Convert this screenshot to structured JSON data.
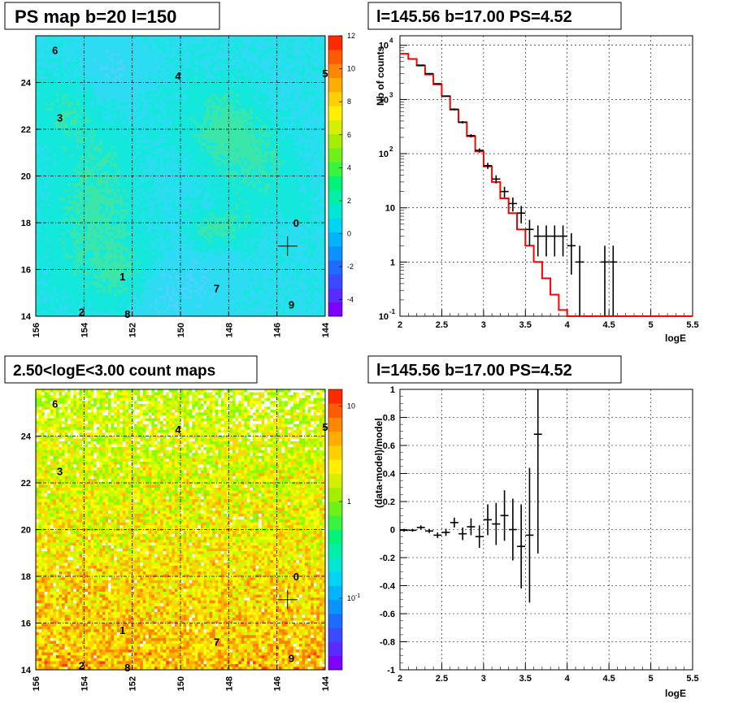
{
  "panels": {
    "top_left": {
      "title": "PS map b=20 l=150",
      "y_ticks": [
        "14",
        "16",
        "18",
        "20",
        "22",
        "24"
      ],
      "x_ticks": [
        "156",
        "154",
        "152",
        "150",
        "148",
        "146",
        "144"
      ],
      "palette_labels": [
        "12",
        "10",
        "8",
        "6",
        "4",
        "2",
        "0",
        "-2",
        "-4"
      ],
      "source_labels": [
        "6",
        "4",
        "5",
        "3",
        "0",
        "1",
        "7",
        "2",
        "8",
        "9"
      ]
    },
    "top_right": {
      "title": "l=145.56 b=17.00 PS=4.52",
      "ylabel": "Nb of counts",
      "xlabel": "logE",
      "x_ticks": [
        "2",
        "2.5",
        "3",
        "3.5",
        "4",
        "4.5",
        "5",
        "5.5"
      ]
    },
    "bottom_left": {
      "title": "2.50<logE<3.00 count maps",
      "y_ticks": [
        "14",
        "16",
        "18",
        "20",
        "22",
        "24"
      ],
      "x_ticks": [
        "156",
        "154",
        "152",
        "150",
        "148",
        "146",
        "144"
      ],
      "palette_labels": [
        "10",
        "1"
      ],
      "source_labels": [
        "6",
        "4",
        "5",
        "3",
        "0",
        "1",
        "7",
        "2",
        "8",
        "9"
      ]
    },
    "bottom_right": {
      "title": "l=145.56 b=17.00 PS=4.52",
      "ylabel": "(data-model)/model",
      "xlabel": "logE",
      "y_ticks": [
        "1",
        "0.8",
        "0.6",
        "0.4",
        "0.2",
        "0",
        "-0.2",
        "-0.4",
        "-0.6",
        "-0.8",
        "-1"
      ],
      "x_ticks": [
        "2",
        "2.5",
        "3",
        "3.5",
        "4",
        "4.5",
        "5",
        "5.5"
      ]
    }
  },
  "colors": {
    "model_line": "#ff0000",
    "data_points": "#000000",
    "grid": "#000000"
  },
  "chart_data": [
    {
      "type": "heatmap",
      "title": "PS map b=20 l=150",
      "xlabel": "",
      "ylabel": "",
      "xlim": [
        156,
        144
      ],
      "ylim": [
        14,
        26
      ],
      "zlim": [
        -5,
        12
      ],
      "colorbar_ticks": [
        12,
        10,
        8,
        6,
        4,
        2,
        0,
        -2,
        -4
      ],
      "crosshair": {
        "x": 145.56,
        "y": 17.0
      },
      "sources": [
        {
          "label": "6",
          "x": 155.2,
          "y": 25.4
        },
        {
          "label": "4",
          "x": 150.1,
          "y": 24.3
        },
        {
          "label": "5",
          "x": 144.0,
          "y": 24.4
        },
        {
          "label": "3",
          "x": 155.0,
          "y": 22.5
        },
        {
          "label": "0",
          "x": 145.2,
          "y": 18.0
        },
        {
          "label": "1",
          "x": 152.4,
          "y": 15.7
        },
        {
          "label": "7",
          "x": 148.5,
          "y": 15.2
        },
        {
          "label": "2",
          "x": 154.1,
          "y": 14.2
        },
        {
          "label": "8",
          "x": 152.2,
          "y": 14.1
        },
        {
          "label": "9",
          "x": 145.4,
          "y": 14.5
        }
      ]
    },
    {
      "type": "line",
      "title": "l=145.56 b=17.00 PS=4.52",
      "xlabel": "logE",
      "ylabel": "Nb of counts",
      "xlim": [
        2,
        5.5
      ],
      "ylim": [
        0.1,
        15000
      ],
      "ylog": true,
      "grid": true,
      "series": [
        {
          "kind": "model-step",
          "bin_width": 0.1,
          "x": [
            2.0,
            2.1,
            2.2,
            2.3,
            2.4,
            2.5,
            2.6,
            2.7,
            2.8,
            2.9,
            3.0,
            3.1,
            3.2,
            3.3,
            3.4,
            3.5,
            3.6,
            3.7,
            3.8,
            3.9,
            4.0,
            4.1
          ],
          "values": [
            7000,
            5600,
            4200,
            2900,
            1900,
            1150,
            650,
            380,
            210,
            110,
            58,
            30,
            15,
            8,
            4,
            2,
            1,
            0.5,
            0.25,
            0.13,
            0.1,
            0.1
          ]
        },
        {
          "kind": "data-points",
          "x": [
            2.25,
            2.35,
            2.45,
            2.55,
            2.65,
            2.75,
            2.85,
            2.95,
            3.05,
            3.15,
            3.25,
            3.35,
            3.45,
            3.55,
            3.65,
            3.75,
            3.85,
            3.95,
            4.05,
            4.15,
            4.45,
            4.55
          ],
          "values": [
            4300,
            3000,
            1950,
            1150,
            660,
            380,
            215,
            115,
            60,
            34,
            20,
            12,
            8,
            4,
            3,
            3,
            3,
            3,
            2,
            1,
            1,
            1
          ]
        }
      ]
    },
    {
      "type": "heatmap",
      "title": "2.50<logE<3.00 count maps",
      "xlabel": "",
      "ylabel": "",
      "xlim": [
        156,
        144
      ],
      "ylim": [
        14,
        26
      ],
      "zlog": true,
      "colorbar_ticks": [
        10,
        1,
        0.1
      ],
      "crosshair": {
        "x": 145.56,
        "y": 17.0
      }
    },
    {
      "type": "scatter",
      "title": "l=145.56 b=17.00 PS=4.52",
      "xlabel": "logE",
      "ylabel": "(data-model)/model",
      "xlim": [
        2,
        5.5
      ],
      "ylim": [
        -1,
        1
      ],
      "grid": true,
      "series": [
        {
          "kind": "residuals",
          "x": [
            2.05,
            2.15,
            2.25,
            2.35,
            2.45,
            2.55,
            2.65,
            2.75,
            2.85,
            2.95,
            3.05,
            3.15,
            3.25,
            3.35,
            3.45,
            3.55,
            3.65
          ],
          "values": [
            -0.005,
            -0.005,
            0.015,
            -0.01,
            -0.04,
            -0.02,
            0.05,
            -0.03,
            0.02,
            -0.05,
            0.07,
            0.04,
            0.1,
            0.0,
            -0.12,
            -0.04,
            0.68
          ],
          "errors": [
            0.01,
            0.01,
            0.015,
            0.015,
            0.02,
            0.025,
            0.035,
            0.045,
            0.06,
            0.08,
            0.11,
            0.15,
            0.18,
            0.22,
            0.3,
            0.48,
            0.85
          ]
        }
      ]
    }
  ]
}
